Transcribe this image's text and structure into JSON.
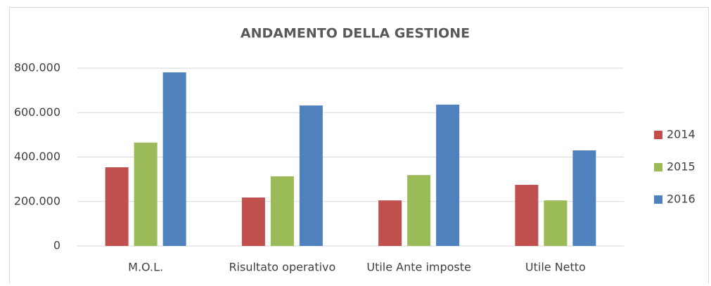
{
  "chart_data": {
    "type": "bar",
    "title": "ANDAMENTO DELLA GESTIONE",
    "categories": [
      "M.O.L.",
      "Risultato operativo",
      "Utile Ante imposte",
      "Utile Netto"
    ],
    "series": [
      {
        "name": "2014",
        "color": "#c0504d",
        "values": [
          354000,
          218000,
          205000,
          275000
        ]
      },
      {
        "name": "2015",
        "color": "#9bbb59",
        "values": [
          465000,
          313000,
          319000,
          205000
        ]
      },
      {
        "name": "2016",
        "color": "#4f81bd",
        "values": [
          781000,
          632000,
          636000,
          430000
        ]
      }
    ],
    "ylim": [
      0,
      800000
    ],
    "yticks": [
      0,
      {
        "value": 200000,
        "label": "200.000"
      },
      {
        "value": 400000,
        "label": "400.000"
      },
      {
        "value": 600000,
        "label": "600.000"
      },
      {
        "value": 800000,
        "label": "800.000"
      }
    ],
    "grid": true,
    "legend": "right"
  }
}
